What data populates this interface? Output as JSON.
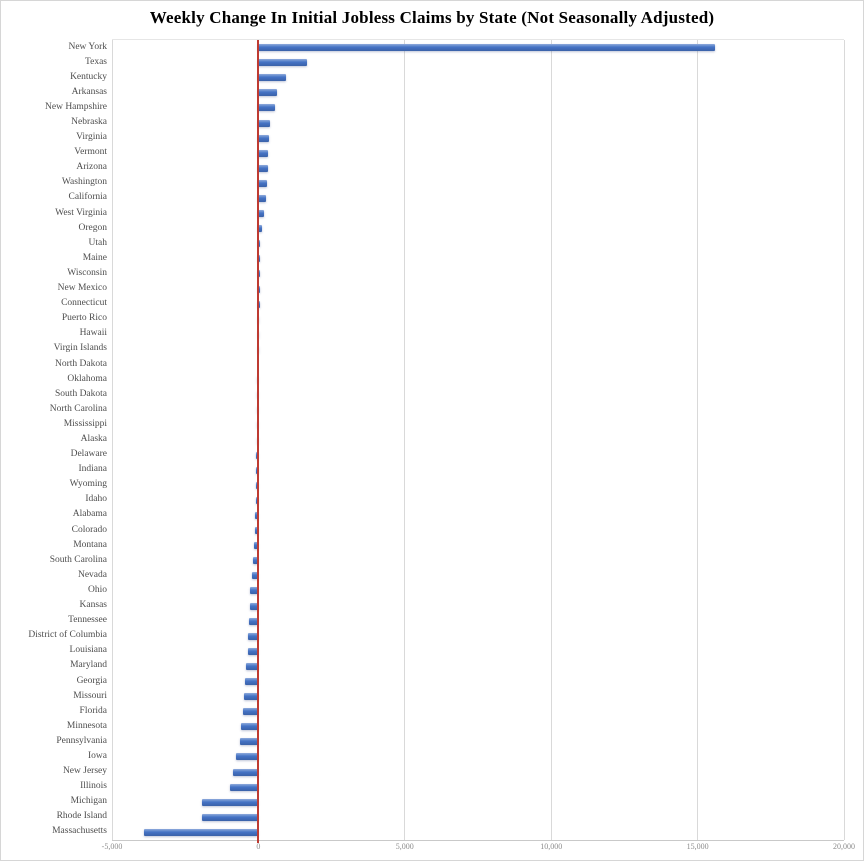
{
  "chart_data": {
    "type": "bar",
    "orientation": "horizontal",
    "title": "Weekly Change In Initial Jobless Claims by State (Not Seasonally Adjusted)",
    "categories": [
      "New York",
      "Texas",
      "Kentucky",
      "Arkansas",
      "New Hampshire",
      "Nebraska",
      "Virginia",
      "Vermont",
      "Arizona",
      "Washington",
      "California",
      "West Virginia",
      "Oregon",
      "Utah",
      "Maine",
      "Wisconsin",
      "New Mexico",
      "Connecticut",
      "Puerto Rico",
      "Hawaii",
      "Virgin Islands",
      "North Dakota",
      "Oklahoma",
      "South Dakota",
      "North Carolina",
      "Mississippi",
      "Alaska",
      "Delaware",
      "Indiana",
      "Wyoming",
      "Idaho",
      "Alabama",
      "Colorado",
      "Montana",
      "South Carolina",
      "Nevada",
      "Ohio",
      "Kansas",
      "Tennessee",
      "District of Columbia",
      "Louisiana",
      "Maryland",
      "Georgia",
      "Missouri",
      "Florida",
      "Minnesota",
      "Pennsylvania",
      "Iowa",
      "New Jersey",
      "Illinois",
      "Michigan",
      "Rhode Island",
      "Massachusetts"
    ],
    "values": [
      15600,
      1650,
      950,
      620,
      560,
      400,
      370,
      340,
      320,
      310,
      260,
      200,
      140,
      70,
      60,
      50,
      45,
      40,
      30,
      20,
      10,
      0,
      -10,
      -20,
      -30,
      -45,
      -55,
      -65,
      -75,
      -85,
      -95,
      -105,
      -120,
      -140,
      -200,
      -230,
      -280,
      -300,
      -320,
      -345,
      -370,
      -430,
      -460,
      -480,
      -510,
      -580,
      -640,
      -750,
      -870,
      -980,
      -1910,
      -1940,
      -3920
    ],
    "xlim": [
      -5000,
      20000
    ],
    "xticks": [
      -5000,
      0,
      5000,
      10000,
      15000,
      20000
    ],
    "xtick_labels": [
      "-5,000",
      "0",
      "5,000",
      "10,000",
      "15,000",
      "20,000"
    ],
    "grid": "vertical-only",
    "legend": "none",
    "colors": {
      "bar": "#4472C4",
      "zero_line": "#BE3B32",
      "gridline": "#D9D9D9",
      "category_label": "#4D4D4D",
      "tick_label": "#8C8C8C",
      "title": "#000000"
    }
  }
}
